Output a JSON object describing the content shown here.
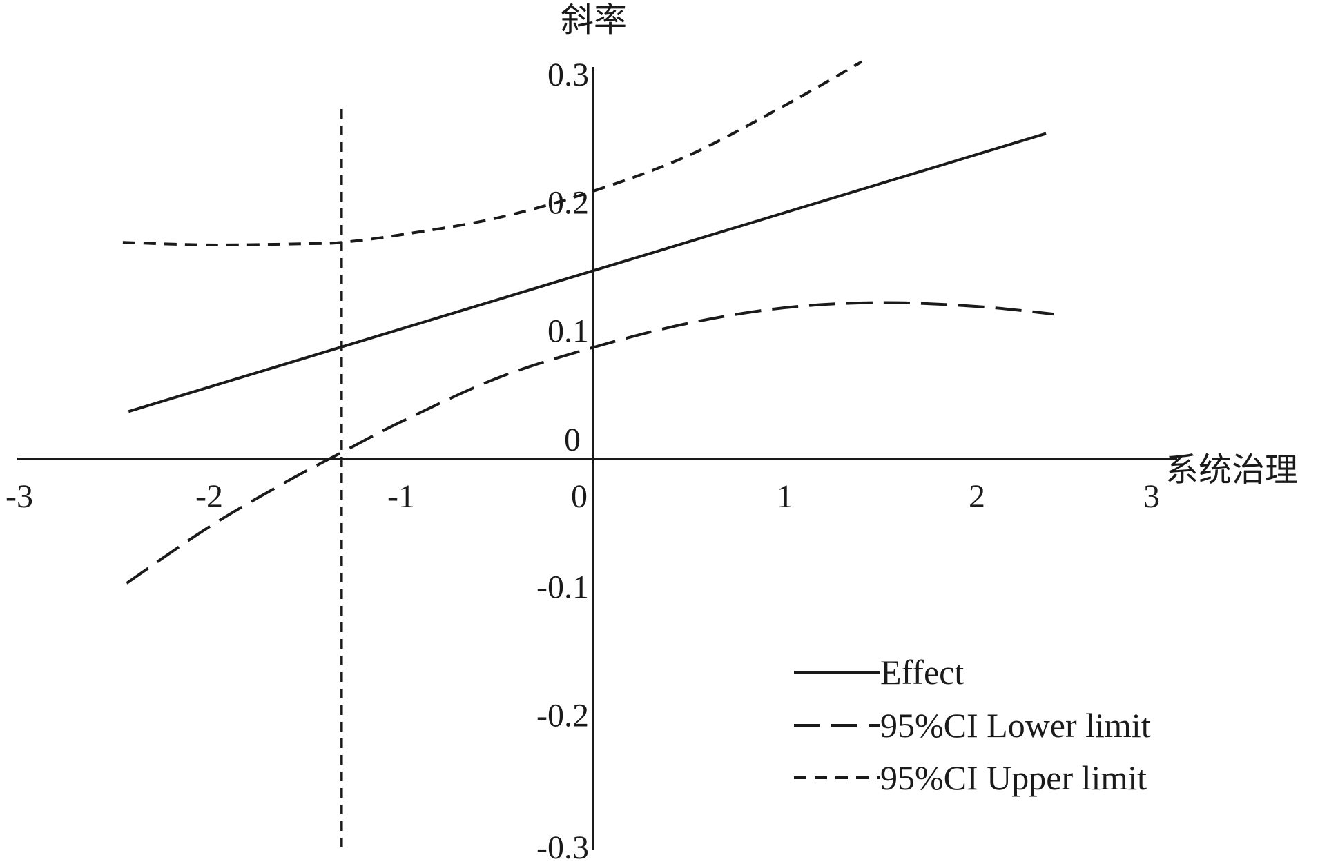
{
  "chart_data": {
    "type": "line",
    "title": "",
    "xlabel": "系统治理",
    "ylabel": "斜率",
    "xlim": [
      -3,
      3
    ],
    "ylim": [
      -0.3,
      0.3
    ],
    "x_ticks": [
      -3,
      -2,
      -1,
      0,
      1,
      2,
      3
    ],
    "x_tick_labels": [
      "-3",
      "-2",
      "-1",
      "0",
      "1",
      "2",
      "3"
    ],
    "y_ticks": [
      -0.3,
      -0.2,
      -0.1,
      0,
      0.1,
      0.2,
      0.3
    ],
    "y_tick_labels": [
      "-0.3",
      "-0.2",
      "-0.1",
      "0",
      "0.1",
      "0.2",
      "0.3"
    ],
    "grid": false,
    "legend_position": "bottom-right",
    "vertical_reference_line": -1.31,
    "series": [
      {
        "name": "Effect",
        "style": "solid",
        "x": [
          -2.42,
          2.36
        ],
        "y": [
          0.037,
          0.254
        ]
      },
      {
        "name": "95%CI Lower limit",
        "style": "long-dash",
        "x": [
          -2.43,
          -2.0,
          -1.6,
          -1.31,
          -1.0,
          -0.5,
          0.0,
          0.5,
          1.0,
          1.5,
          2.0,
          2.4
        ],
        "y": [
          -0.097,
          -0.053,
          -0.018,
          0.005,
          0.029,
          0.063,
          0.087,
          0.106,
          0.118,
          0.122,
          0.119,
          0.113
        ]
      },
      {
        "name": "95%CI Upper limit",
        "style": "short-dash",
        "x": [
          -2.45,
          -2.0,
          -1.5,
          -1.31,
          -1.0,
          -0.5,
          0.0,
          0.5,
          1.0,
          1.4
        ],
        "y": [
          0.169,
          0.167,
          0.168,
          0.169,
          0.175,
          0.188,
          0.209,
          0.237,
          0.276,
          0.31
        ]
      }
    ],
    "colors": {
      "lines": "#1a1a1a",
      "background": "#ffffff"
    }
  }
}
